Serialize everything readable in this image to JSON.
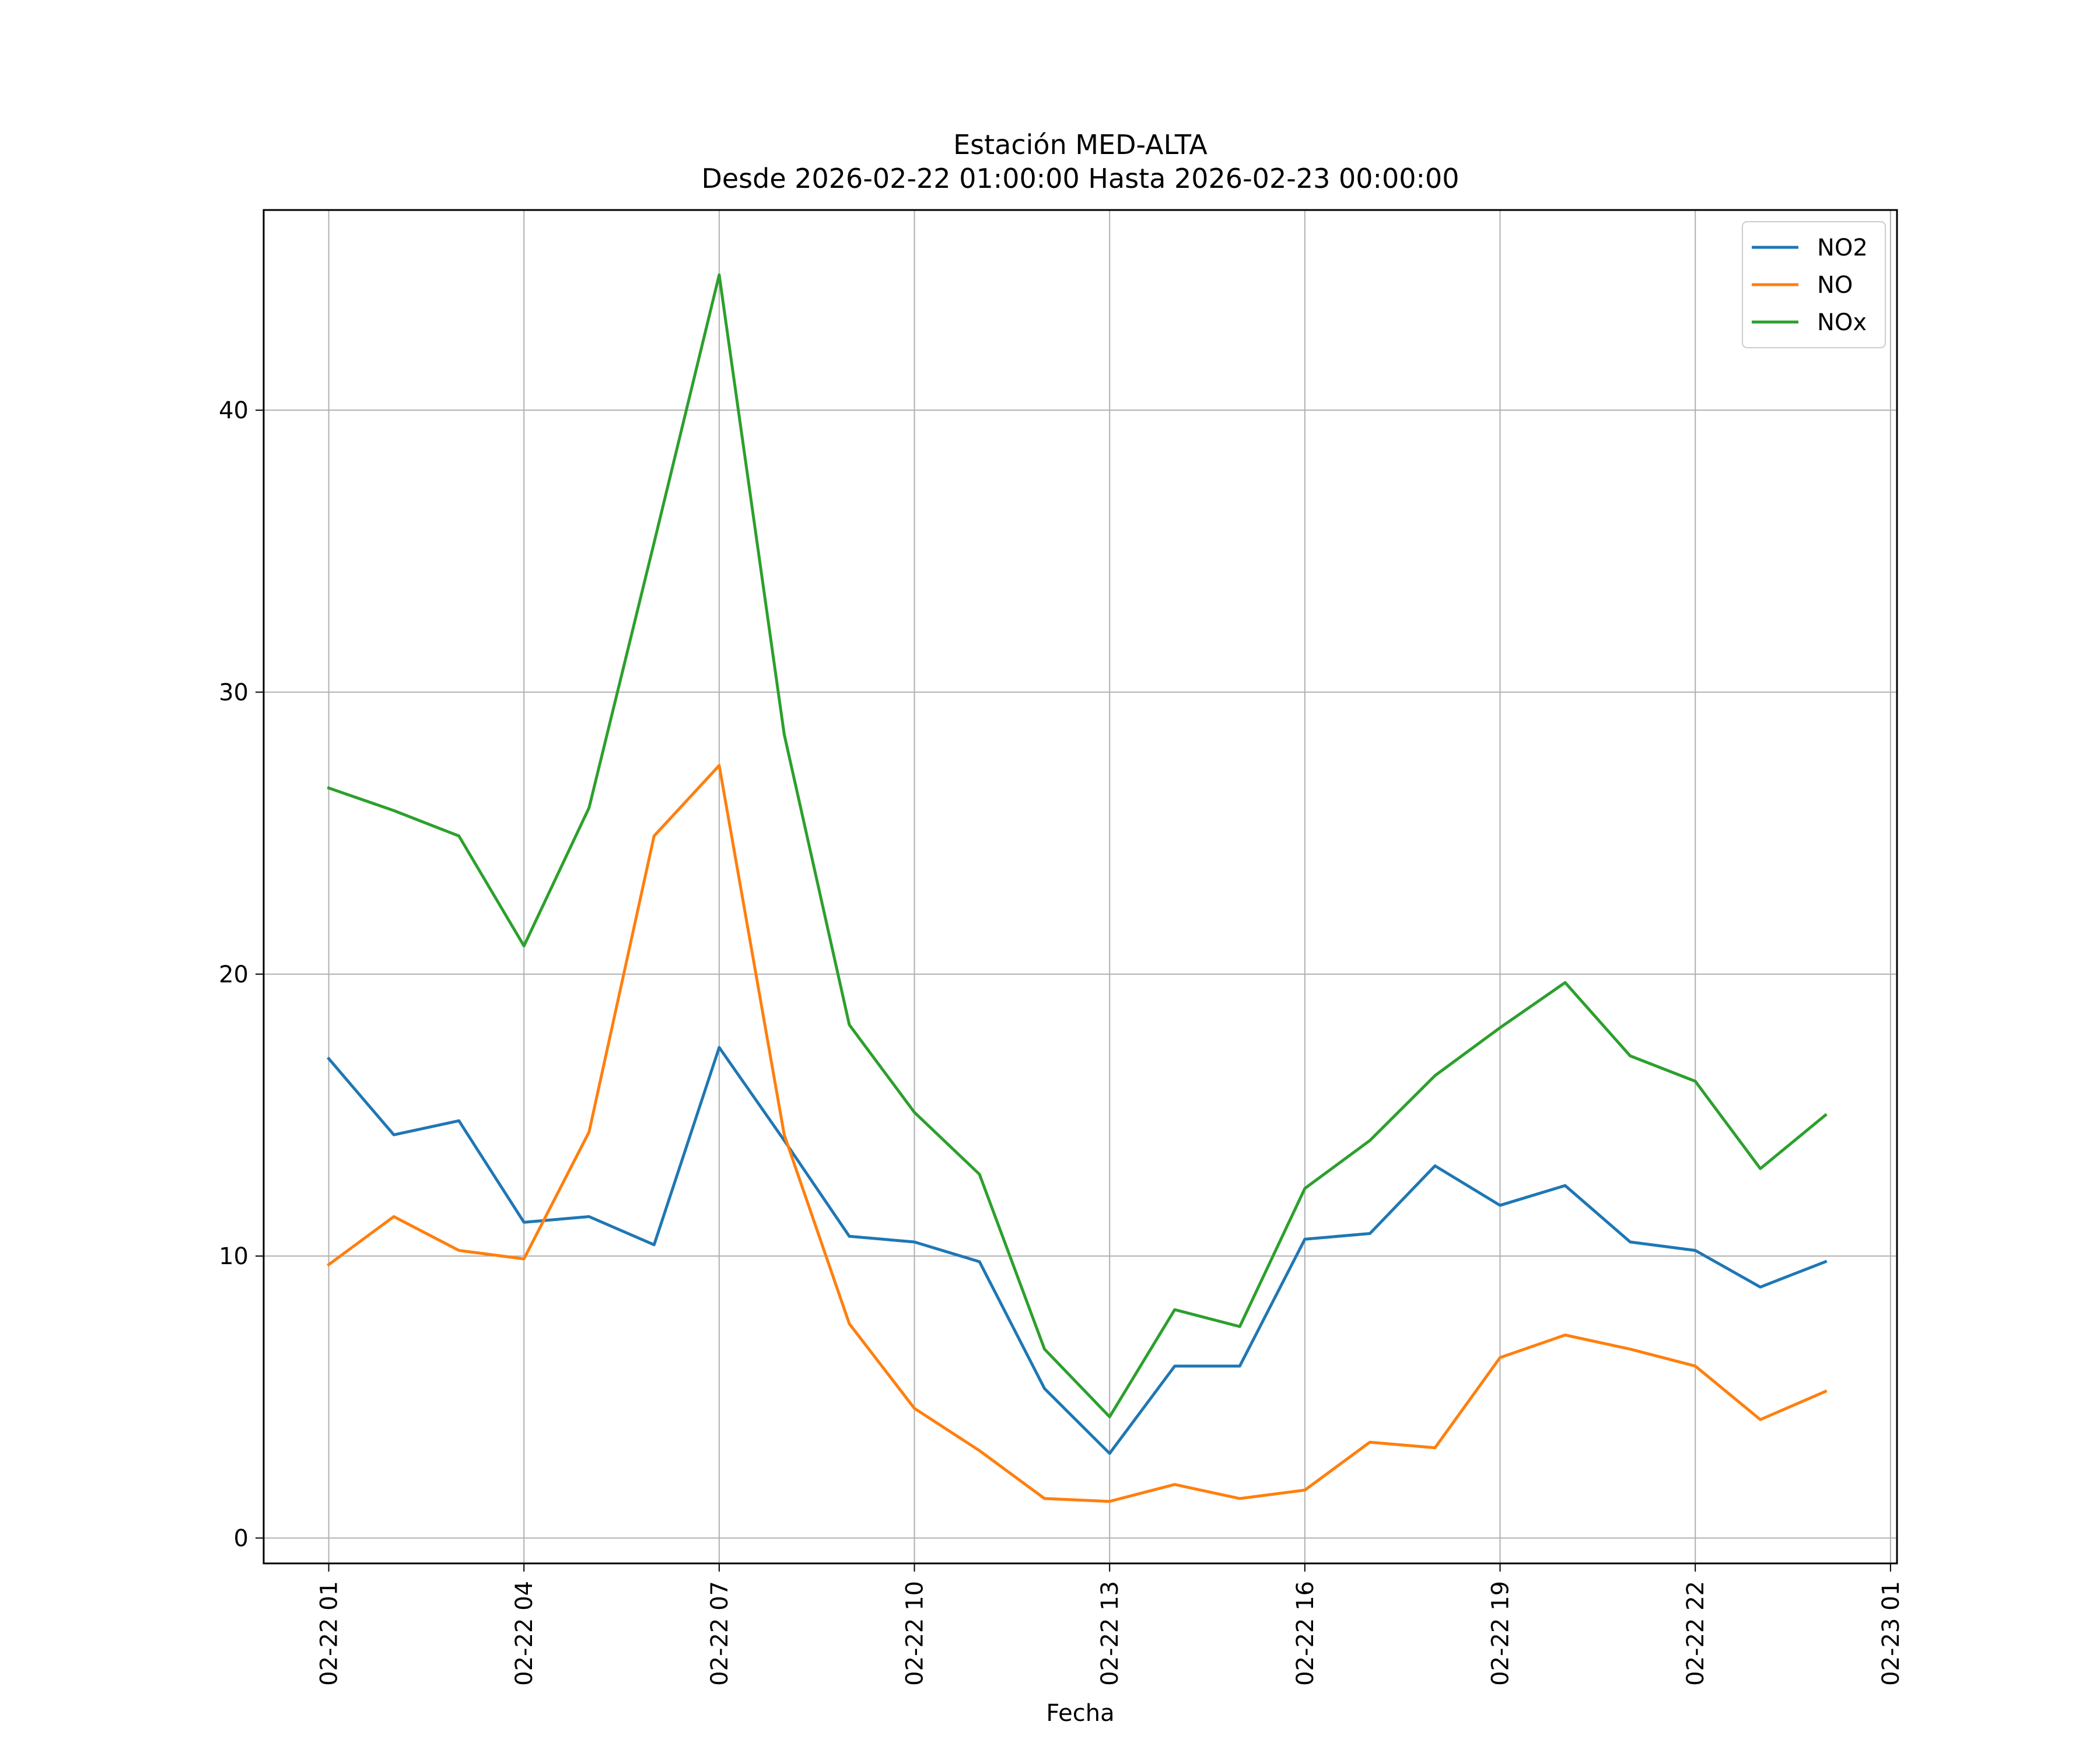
{
  "chart_data": {
    "type": "line",
    "title": "Estación MED-ALTA",
    "subtitle": "Desde 2026-02-22 01:00:00 Hasta 2026-02-23 00:00:00",
    "xlabel": "Fecha",
    "ylabel": "",
    "x": [
      "2026-02-22 01:00",
      "2026-02-22 02:00",
      "2026-02-22 03:00",
      "2026-02-22 04:00",
      "2026-02-22 05:00",
      "2026-02-22 06:00",
      "2026-02-22 07:00",
      "2026-02-22 08:00",
      "2026-02-22 09:00",
      "2026-02-22 10:00",
      "2026-02-22 11:00",
      "2026-02-22 12:00",
      "2026-02-22 13:00",
      "2026-02-22 14:00",
      "2026-02-22 15:00",
      "2026-02-22 16:00",
      "2026-02-22 17:00",
      "2026-02-22 18:00",
      "2026-02-22 19:00",
      "2026-02-22 20:00",
      "2026-02-22 21:00",
      "2026-02-22 22:00",
      "2026-02-22 23:00",
      "2026-02-23 00:00"
    ],
    "x_ticks": [
      "02-22 01",
      "02-22 04",
      "02-22 07",
      "02-22 10",
      "02-22 13",
      "02-22 16",
      "02-22 19",
      "02-22 22",
      "02-23 01"
    ],
    "x_tick_hours": [
      1,
      4,
      7,
      10,
      13,
      16,
      19,
      22,
      25
    ],
    "xlim_hours": [
      0,
      25.1
    ],
    "y_ticks": [
      0,
      10,
      20,
      30,
      40
    ],
    "ylim": [
      -0.9,
      47.1
    ],
    "grid": true,
    "legend_position": "top-right",
    "series": [
      {
        "name": "NO2",
        "color": "#1f77b4",
        "values": [
          17.0,
          14.3,
          14.8,
          11.2,
          11.4,
          10.4,
          17.4,
          14.1,
          10.7,
          10.5,
          9.8,
          5.3,
          3.0,
          6.1,
          6.1,
          10.6,
          10.8,
          13.2,
          11.8,
          12.5,
          10.5,
          10.2,
          8.9,
          9.8
        ]
      },
      {
        "name": "NO",
        "color": "#ff7f0e",
        "values": [
          9.7,
          11.4,
          10.2,
          9.9,
          14.4,
          24.9,
          27.4,
          14.3,
          7.6,
          4.6,
          3.1,
          1.4,
          1.3,
          1.9,
          1.4,
          1.7,
          3.4,
          3.2,
          6.4,
          7.2,
          6.7,
          6.1,
          4.2,
          5.2
        ]
      },
      {
        "name": "NOx",
        "color": "#2ca02c",
        "values": [
          26.6,
          25.8,
          24.9,
          21.0,
          25.9,
          35.3,
          44.8,
          28.5,
          18.2,
          15.1,
          12.9,
          6.7,
          4.3,
          8.1,
          7.5,
          12.4,
          14.1,
          16.4,
          18.1,
          19.7,
          17.1,
          16.2,
          13.1,
          15.0
        ]
      }
    ]
  }
}
